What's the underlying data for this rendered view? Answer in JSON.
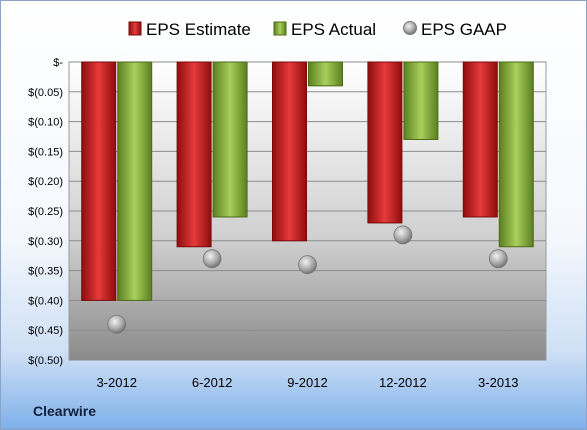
{
  "company": "Clearwire",
  "colors": {
    "estimate": "#cc1f1f",
    "actual": "#8cb43c",
    "gaap": "#a8a8a8"
  },
  "chart_data": {
    "type": "bar",
    "categories": [
      "3-2012",
      "6-2012",
      "9-2012",
      "12-2012",
      "3-2013"
    ],
    "series": [
      {
        "name": "EPS Estimate",
        "kind": "bar",
        "values": [
          -0.4,
          -0.31,
          -0.3,
          -0.27,
          -0.26
        ]
      },
      {
        "name": "EPS Actual",
        "kind": "bar",
        "values": [
          -0.4,
          -0.26,
          -0.04,
          -0.13,
          -0.31
        ]
      },
      {
        "name": "EPS GAAP",
        "kind": "marker",
        "values": [
          -0.44,
          -0.33,
          -0.34,
          -0.29,
          -0.33
        ]
      }
    ],
    "yticks": [
      "$-",
      "$(0.05)",
      "$(0.10)",
      "$(0.15)",
      "$(0.20)",
      "$(0.25)",
      "$(0.30)",
      "$(0.35)",
      "$(0.40)",
      "$(0.45)",
      "$(0.50)"
    ],
    "ylim": [
      -0.5,
      0
    ],
    "legend_position": "top",
    "grid": true
  }
}
